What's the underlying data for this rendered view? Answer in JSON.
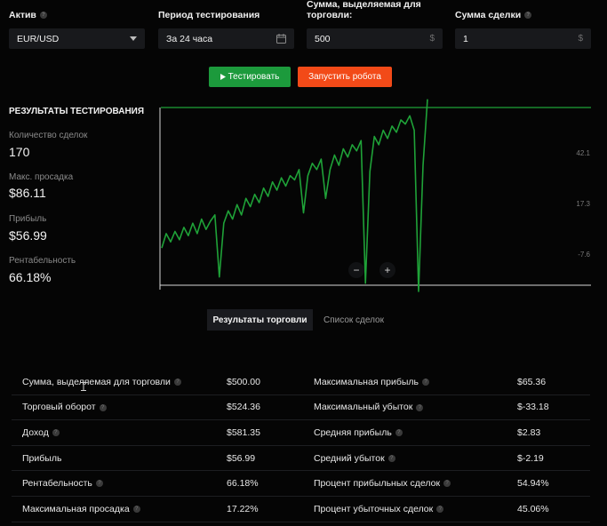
{
  "form": {
    "asset_label": "Актив",
    "asset_value": "EUR/USD",
    "period_label": "Период тестирования",
    "period_value": "За 24 часа",
    "amount_label_line1": "Сумма, выделяемая для",
    "amount_label_line2": "торговли:",
    "amount_value": "500",
    "amount_suffix": "$",
    "trade_sum_label": "Сумма сделки",
    "trade_sum_value": "1",
    "trade_sum_suffix": "$"
  },
  "buttons": {
    "test_label": "Тестировать",
    "run_label": "Запустить робота"
  },
  "results": {
    "title": "РЕЗУЛЬТАТЫ ТЕСТИРОВАНИЯ",
    "trades_label": "Количество сделок",
    "trades_value": "170",
    "drawdown_label": "Макс. просадка",
    "drawdown_value": "$86.11",
    "profit_label": "Прибыль",
    "profit_value": "$56.99",
    "roi_label": "Рентабельность",
    "roi_value": "66.18%"
  },
  "chart_controls": {
    "zoom_out": "−",
    "zoom_in": "+"
  },
  "tabs": {
    "results_tab": "Результаты торговли",
    "deals_tab": "Список сделок"
  },
  "table": {
    "rows": [
      {
        "label": "Сумма, выделяемая для торговли",
        "value": "$500.00",
        "label2": "Максимальная прибыль",
        "value2": "$65.36"
      },
      {
        "label": "Торговый оборот",
        "value": "$524.36",
        "label2": "Максимальный убыток",
        "value2": "$-33.18"
      },
      {
        "label": "Доход",
        "value": "$581.35",
        "label2": "Средняя прибыль",
        "value2": "$2.83"
      },
      {
        "label": "Прибыль",
        "value": "$56.99",
        "label2": "Средний убыток",
        "value2": "$-2.19"
      },
      {
        "label": "Рентабельность",
        "value": "66.18%",
        "label2": "Процент прибыльных сделок",
        "value2": "54.94%"
      },
      {
        "label": "Максимальная просадка",
        "value": "17.22%",
        "label2": "Процент убыточных сделок",
        "value2": "45.06%"
      }
    ]
  },
  "colors": {
    "line": "#1fa238",
    "test_button": "#1c9a3c",
    "run_button": "#f24a18",
    "background": "#050505"
  },
  "chart_data": {
    "type": "line",
    "title": "",
    "xlabel": "",
    "ylabel": "",
    "yticks": [
      "42.1",
      "17.3",
      "-7.6"
    ],
    "ylim": [
      -28,
      58
    ],
    "series": [
      {
        "values": [
          -10,
          -3,
          -7,
          -2,
          -6,
          0,
          -4,
          2,
          -3,
          4,
          -1,
          3,
          6,
          -24,
          2,
          8,
          4,
          11,
          6,
          14,
          10,
          16,
          12,
          19,
          15,
          22,
          18,
          24,
          20,
          25,
          23,
          28,
          7,
          25,
          31,
          28,
          33,
          14,
          28,
          35,
          30,
          38,
          34,
          40,
          37,
          42,
          -27,
          27,
          44,
          40,
          47,
          43,
          49,
          46,
          52,
          50,
          54,
          47,
          -31,
          30,
          62
        ]
      }
    ]
  }
}
